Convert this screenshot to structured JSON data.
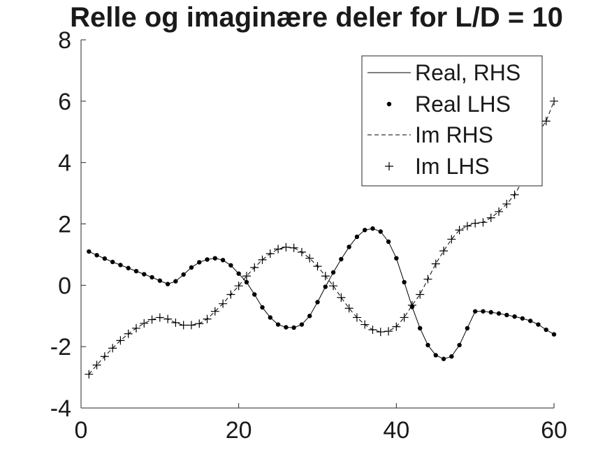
{
  "chart_data": {
    "type": "line",
    "title": "Relle og imaginære deler for L/D = 10",
    "xlabel": "",
    "ylabel": "",
    "xlim": [
      0,
      60
    ],
    "ylim": [
      -4,
      8
    ],
    "xticks": [
      0,
      20,
      40,
      60
    ],
    "xtick_labels": [
      "0",
      "20",
      "40",
      "60"
    ],
    "yticks": [
      -4,
      -2,
      0,
      2,
      4,
      6,
      8
    ],
    "ytick_labels": [
      "-4",
      "-2",
      "0",
      "2",
      "4",
      "6",
      "8"
    ],
    "grid": false,
    "legend_position": "top-right",
    "x": [
      1,
      2,
      3,
      4,
      5,
      6,
      7,
      8,
      9,
      10,
      11,
      12,
      13,
      14,
      15,
      16,
      17,
      18,
      19,
      20,
      21,
      22,
      23,
      24,
      25,
      26,
      27,
      28,
      29,
      30,
      31,
      32,
      33,
      34,
      35,
      36,
      37,
      38,
      39,
      40,
      41,
      42,
      43,
      44,
      45,
      46,
      47,
      48,
      49,
      50,
      51,
      52,
      53,
      54,
      55,
      56,
      57,
      58,
      59,
      60
    ],
    "series": [
      {
        "name": "Real, RHS",
        "style": "solid-line",
        "color": "#000000",
        "values": [
          1.1,
          0.98,
          0.87,
          0.76,
          0.66,
          0.56,
          0.46,
          0.36,
          0.26,
          0.15,
          0.04,
          0.13,
          0.35,
          0.58,
          0.75,
          0.84,
          0.88,
          0.82,
          0.65,
          0.38,
          0.1,
          -0.3,
          -0.72,
          -1.05,
          -1.28,
          -1.37,
          -1.38,
          -1.28,
          -1.0,
          -0.55,
          -0.05,
          0.42,
          0.85,
          1.25,
          1.58,
          1.8,
          1.85,
          1.75,
          1.42,
          0.88,
          0.1,
          -0.7,
          -1.4,
          -1.95,
          -2.28,
          -2.4,
          -2.32,
          -1.95,
          -1.4,
          -0.85,
          -0.85,
          -0.88,
          -0.92,
          -0.97,
          -1.02,
          -1.08,
          -1.16,
          -1.28,
          -1.45,
          -1.6
        ]
      },
      {
        "name": "Real LHS",
        "style": "dot-marker",
        "color": "#000000",
        "values": [
          1.1,
          0.98,
          0.87,
          0.76,
          0.66,
          0.56,
          0.46,
          0.36,
          0.26,
          0.15,
          0.04,
          0.13,
          0.35,
          0.58,
          0.75,
          0.84,
          0.88,
          0.82,
          0.65,
          0.38,
          0.1,
          -0.3,
          -0.72,
          -1.05,
          -1.28,
          -1.37,
          -1.38,
          -1.28,
          -1.0,
          -0.55,
          -0.05,
          0.42,
          0.85,
          1.25,
          1.58,
          1.8,
          1.85,
          1.75,
          1.42,
          0.88,
          0.1,
          -0.7,
          -1.4,
          -1.95,
          -2.28,
          -2.4,
          -2.32,
          -1.95,
          -1.4,
          -0.85,
          -0.85,
          -0.88,
          -0.92,
          -0.97,
          -1.02,
          -1.08,
          -1.16,
          -1.28,
          -1.45,
          -1.6
        ]
      },
      {
        "name": "Im RHS",
        "style": "dashed-line",
        "color": "#000000",
        "values": [
          -2.9,
          -2.6,
          -2.32,
          -2.05,
          -1.8,
          -1.58,
          -1.4,
          -1.24,
          -1.12,
          -1.05,
          -1.1,
          -1.22,
          -1.3,
          -1.3,
          -1.25,
          -1.1,
          -0.85,
          -0.6,
          -0.3,
          -0.02,
          0.3,
          0.58,
          0.83,
          1.03,
          1.18,
          1.24,
          1.22,
          1.08,
          0.88,
          0.62,
          0.3,
          -0.02,
          -0.4,
          -0.75,
          -1.05,
          -1.28,
          -1.45,
          -1.52,
          -1.5,
          -1.35,
          -1.05,
          -0.65,
          -0.3,
          0.2,
          0.7,
          1.12,
          1.5,
          1.8,
          1.93,
          2.02,
          2.05,
          2.2,
          2.4,
          2.65,
          2.95,
          3.4,
          4.5,
          4.98,
          5.35,
          6.0
        ]
      },
      {
        "name": "Im LHS",
        "style": "plus-marker",
        "color": "#000000",
        "values": [
          -2.9,
          -2.6,
          -2.32,
          -2.05,
          -1.8,
          -1.58,
          -1.4,
          -1.24,
          -1.12,
          -1.05,
          -1.1,
          -1.22,
          -1.3,
          -1.3,
          -1.25,
          -1.1,
          -0.85,
          -0.6,
          -0.3,
          -0.02,
          0.3,
          0.58,
          0.83,
          1.03,
          1.18,
          1.24,
          1.22,
          1.08,
          0.88,
          0.62,
          0.3,
          -0.02,
          -0.4,
          -0.75,
          -1.05,
          -1.28,
          -1.45,
          -1.52,
          -1.5,
          -1.35,
          -1.05,
          -0.65,
          -0.3,
          0.2,
          0.7,
          1.12,
          1.5,
          1.8,
          1.93,
          2.02,
          2.05,
          2.2,
          2.4,
          2.65,
          2.95,
          3.4,
          4.5,
          4.98,
          5.35,
          6.0
        ]
      }
    ]
  }
}
